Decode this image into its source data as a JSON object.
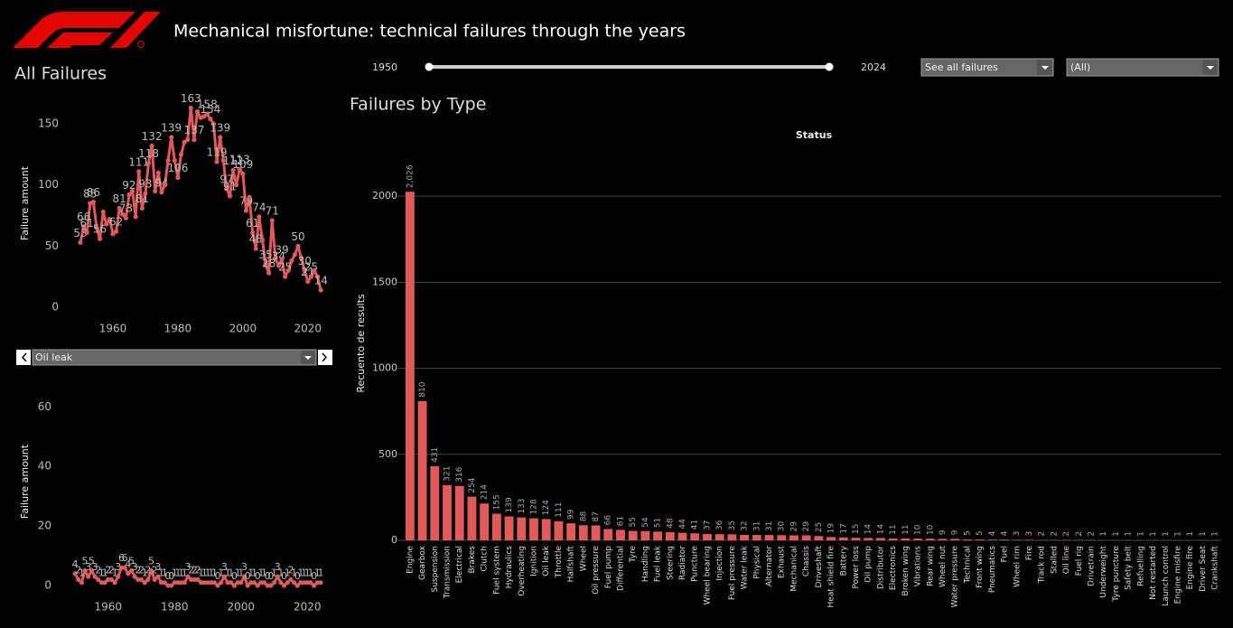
{
  "header": {
    "title": "Mechanical misfortune: technical failures through the years"
  },
  "controls": {
    "year_from": 1950,
    "year_to": 2024,
    "status_filter": "See all failures",
    "filter": "(All)"
  },
  "chart_data": [
    {
      "type": "line",
      "title": "All Failures",
      "ylabel": "Failure amount",
      "color": "#e05a5a",
      "x": [
        1950,
        1951,
        1952,
        1953,
        1954,
        1955,
        1956,
        1957,
        1958,
        1959,
        1960,
        1961,
        1962,
        1963,
        1964,
        1965,
        1966,
        1967,
        1968,
        1969,
        1970,
        1971,
        1972,
        1973,
        1974,
        1975,
        1976,
        1977,
        1978,
        1979,
        1980,
        1981,
        1982,
        1983,
        1984,
        1985,
        1986,
        1987,
        1988,
        1989,
        1990,
        1991,
        1992,
        1993,
        1994,
        1995,
        1996,
        1997,
        1998,
        1999,
        2000,
        2001,
        2002,
        2003,
        2004,
        2005,
        2006,
        2007,
        2008,
        2009,
        2010,
        2011,
        2012,
        2013,
        2014,
        2015,
        2016,
        2017,
        2018,
        2019,
        2020,
        2021,
        2022,
        2023,
        2024
      ],
      "values": [
        53,
        66,
        61,
        85,
        86,
        65,
        56,
        78,
        68,
        72,
        60,
        62,
        81,
        76,
        73,
        92,
        95,
        74,
        111,
        81,
        93,
        118,
        132,
        95,
        110,
        94,
        100,
        120,
        139,
        120,
        106,
        125,
        135,
        137,
        163,
        137,
        160,
        155,
        156,
        158,
        154,
        150,
        119,
        139,
        120,
        97,
        91,
        112,
        100,
        113,
        109,
        79,
        90,
        61,
        48,
        74,
        55,
        35,
        28,
        71,
        40,
        34,
        39,
        25,
        30,
        38,
        43,
        50,
        40,
        30,
        21,
        25,
        30,
        25,
        14
      ],
      "value_labels": [
        "53",
        "66",
        "61",
        "85",
        "86",
        null,
        "56",
        null,
        null,
        null,
        null,
        "62",
        "81",
        null,
        "73",
        "92",
        null,
        null,
        "111",
        "81",
        "93",
        "118",
        "132",
        null,
        null,
        "94",
        null,
        null,
        "139",
        null,
        "106",
        null,
        null,
        null,
        "163",
        "137",
        null,
        null,
        null,
        "158",
        "154",
        null,
        "119",
        "139",
        null,
        "97",
        "91",
        "112",
        null,
        "113",
        "109",
        "79",
        null,
        "61",
        "48",
        "74",
        null,
        "35",
        "28",
        "71",
        null,
        "34",
        "39",
        "25",
        null,
        null,
        null,
        "50",
        null,
        "30",
        "21",
        "25",
        null,
        null,
        "14"
      ],
      "xlim": [
        1946,
        2027
      ],
      "xticks": [
        1960,
        1980,
        2000,
        2020
      ],
      "ylim": [
        0,
        170
      ],
      "yticks": [
        0,
        50,
        100,
        150
      ]
    },
    {
      "type": "line",
      "title": "Oil leak",
      "ylabel": "Failure amount",
      "color": "#e05a5a",
      "x": [
        1950,
        1951,
        1952,
        1953,
        1954,
        1955,
        1956,
        1957,
        1958,
        1959,
        1960,
        1961,
        1962,
        1963,
        1964,
        1965,
        1966,
        1967,
        1968,
        1969,
        1970,
        1971,
        1972,
        1973,
        1974,
        1975,
        1976,
        1977,
        1978,
        1979,
        1980,
        1981,
        1982,
        1983,
        1984,
        1985,
        1986,
        1987,
        1988,
        1989,
        1990,
        1991,
        1992,
        1993,
        1994,
        1995,
        1996,
        1997,
        1998,
        1999,
        2000,
        2001,
        2002,
        2003,
        2004,
        2005,
        2006,
        2007,
        2008,
        2009,
        2010,
        2011,
        2012,
        2013,
        2014,
        2015,
        2016,
        2017,
        2018,
        2019,
        2020,
        2021,
        2022,
        2023,
        2024
      ],
      "values": [
        4,
        2,
        1,
        5,
        3,
        5,
        3,
        2,
        1,
        1,
        2,
        2,
        1,
        3,
        6,
        6,
        4,
        5,
        3,
        2,
        2,
        1,
        2,
        5,
        2,
        3,
        1,
        1,
        0,
        0,
        1,
        1,
        1,
        1,
        3,
        2,
        2,
        2,
        1,
        1,
        1,
        1,
        1,
        0,
        1,
        3,
        1,
        1,
        0,
        1,
        1,
        3,
        0,
        1,
        1,
        0,
        1,
        1,
        0,
        0,
        1,
        3,
        1,
        0,
        1,
        2,
        1,
        0,
        1,
        1,
        1,
        1,
        0,
        1,
        1
      ],
      "xlim": [
        1946,
        2027
      ],
      "xticks": [
        1960,
        1980,
        2000,
        2020
      ],
      "ylim": [
        0,
        68
      ],
      "yticks": [
        0,
        20,
        40,
        60
      ]
    },
    {
      "type": "bar",
      "title": "Failures by Type",
      "xlabel": "Status",
      "ylabel": "Recuento de results",
      "color": "#e05a5a",
      "grid": true,
      "categories": [
        "Engine",
        "Gearbox",
        "Suspension",
        "Transmission",
        "Electrical",
        "Brakes",
        "Clutch",
        "Fuel system",
        "Hydraulics",
        "Overheating",
        "Ignition",
        "Oil leak",
        "Throttle",
        "Halfshaft",
        "Wheel",
        "Oil pressure",
        "Fuel pump",
        "Differential",
        "Tyre",
        "Handling",
        "Fuel leak",
        "Steering",
        "Radiator",
        "Puncture",
        "Wheel bearing",
        "Injection",
        "Fuel pressure",
        "Water leak",
        "Physical",
        "Alternator",
        "Exhaust",
        "Mechanical",
        "Chassis",
        "Driveshaft",
        "Heat shield fire",
        "Battery",
        "Power loss",
        "Oil pump",
        "Distributor",
        "Electronics",
        "Broken wing",
        "Vibrations",
        "Rear wing",
        "Wheel nut",
        "Water pressure",
        "Technical",
        "Front wing",
        "Pneumatics",
        "Fuel",
        "Wheel rim",
        "Fire",
        "Track rod",
        "Stalled",
        "Oil line",
        "Fuel rig",
        "Drivetrain",
        "Underweight",
        "Tyre puncture",
        "Safety belt",
        "Refuelling",
        "Not restarted",
        "Launch control",
        "Engine misfire",
        "Engine fire",
        "Driver Seat",
        "Crankshaft"
      ],
      "values": [
        2026,
        810,
        431,
        321,
        316,
        254,
        214,
        155,
        139,
        133,
        128,
        124,
        111,
        99,
        88,
        87,
        66,
        61,
        55,
        54,
        51,
        48,
        44,
        41,
        37,
        36,
        35,
        32,
        31,
        31,
        30,
        29,
        29,
        25,
        19,
        17,
        15,
        14,
        14,
        11,
        11,
        10,
        10,
        9,
        9,
        5,
        5,
        4,
        4,
        3,
        3,
        2,
        2,
        2,
        2,
        2,
        1,
        1,
        1,
        1,
        1,
        1,
        1,
        1,
        1,
        1
      ],
      "value_labels": [
        "2,026",
        "810",
        "431",
        "321",
        "316",
        "254",
        "214",
        "155",
        "139",
        "133",
        "128",
        "124",
        "111",
        "99",
        "88",
        "87",
        "66",
        "61",
        "55",
        "54",
        "51",
        "48",
        "44",
        "41",
        "37",
        "36",
        "35",
        "32",
        "31",
        "31",
        "30",
        "29",
        "29",
        "25",
        "19",
        "17",
        "15",
        "14",
        "14",
        "11",
        "11",
        "10",
        "10",
        "9",
        "9",
        "5",
        "5",
        "4",
        "4",
        "3",
        "3",
        "2",
        "2",
        "2",
        "2",
        "2",
        "1",
        "1",
        "1",
        "1",
        "1",
        "1",
        "1",
        "1",
        "1",
        "1"
      ],
      "ylim": [
        0,
        2300
      ],
      "yticks": [
        0,
        500,
        1000,
        1500,
        2000
      ]
    }
  ]
}
